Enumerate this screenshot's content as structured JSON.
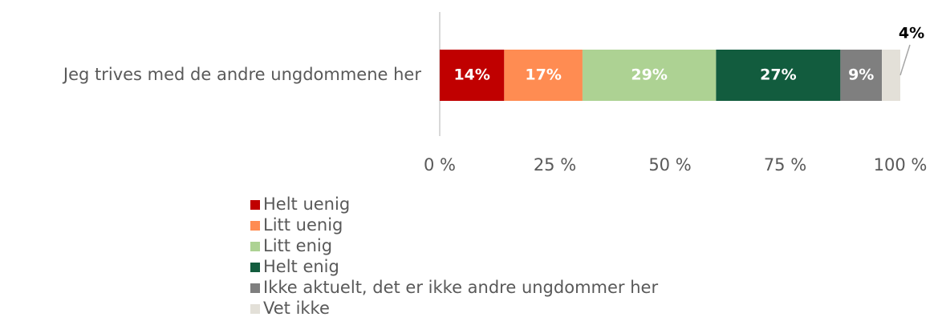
{
  "chart_data": {
    "type": "stacked_bar_horizontal",
    "categories": [
      "Jeg trives med de andre ungdommene her"
    ],
    "series": [
      {
        "name": "Helt uenig",
        "color": "#c00000",
        "values": [
          14
        ],
        "value_labels": [
          "14%"
        ]
      },
      {
        "name": "Litt uenig",
        "color": "#ff8c52",
        "values": [
          17
        ],
        "value_labels": [
          "17%"
        ]
      },
      {
        "name": "Litt enig",
        "color": "#add293",
        "values": [
          29
        ],
        "value_labels": [
          "29%"
        ]
      },
      {
        "name": "Helt enig",
        "color": "#125c3e",
        "values": [
          27
        ],
        "value_labels": [
          "27%"
        ]
      },
      {
        "name": "Ikke aktuelt, det er ikke andre ungdommer her",
        "color": "#7f7f7f",
        "values": [
          9
        ],
        "value_labels": [
          "9%"
        ]
      },
      {
        "name": "Vet ikke",
        "color": "#e3e0d8",
        "values": [
          4
        ],
        "value_labels": [
          "4%"
        ]
      }
    ],
    "xlim": [
      0,
      100
    ],
    "xticks": [
      {
        "value": 0,
        "label": "0 %"
      },
      {
        "value": 25,
        "label": "25 %"
      },
      {
        "value": 50,
        "label": "50 %"
      },
      {
        "value": 75,
        "label": "75 %"
      },
      {
        "value": 100,
        "label": "100 %"
      }
    ],
    "legend": "bottom"
  }
}
